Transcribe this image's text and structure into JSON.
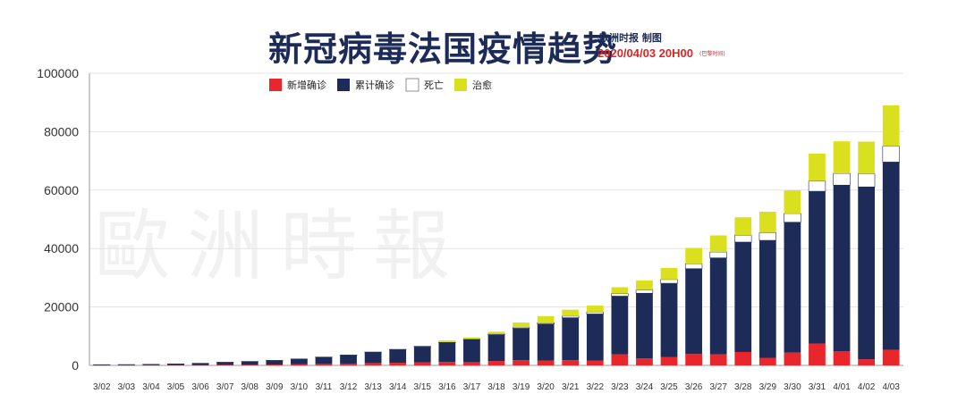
{
  "header": {
    "title": "新冠病毒法国疫情趋势",
    "publisher": "欧洲时报 制图",
    "timestamp": "2020/04/03 20H00",
    "timezone_note": "(巴黎时间)"
  },
  "watermark": "歐洲時報",
  "colors": {
    "new_cases": "#e8262c",
    "cumulative": "#1c2b57",
    "deaths": "#ffffff",
    "recovered": "#dbe01e",
    "title": "#1c2b57",
    "timestamp": "#e02424"
  },
  "chart_data": {
    "type": "bar",
    "stacked": true,
    "categories": [
      "3/02",
      "3/03",
      "3/04",
      "3/05",
      "3/06",
      "3/07",
      "3/08",
      "3/09",
      "3/10",
      "3/11",
      "3/12",
      "3/13",
      "3/14",
      "3/15",
      "3/16",
      "3/17",
      "3/18",
      "3/19",
      "3/20",
      "3/21",
      "3/22",
      "3/23",
      "3/24",
      "3/25",
      "3/26",
      "3/27",
      "3/28",
      "3/29",
      "3/30",
      "3/31",
      "4/01",
      "4/02",
      "4/03"
    ],
    "series": [
      {
        "name": "新增确诊",
        "color": "#e8262c",
        "values": [
          60,
          70,
          90,
          110,
          120,
          180,
          190,
          290,
          370,
          500,
          600,
          800,
          900,
          1000,
          1200,
          1100,
          1500,
          1800,
          1600,
          1800,
          1600,
          3800,
          2400,
          2900,
          3900,
          3800,
          4600,
          2600,
          4400,
          7500,
          4800,
          2100,
          5300
        ]
      },
      {
        "name": "累计确诊",
        "color": "#1c2b57",
        "values": [
          190,
          210,
          280,
          400,
          600,
          900,
          1150,
          1400,
          1800,
          2300,
          2900,
          3700,
          4500,
          5400,
          6600,
          7700,
          9000,
          10900,
          12600,
          14500,
          16000,
          19900,
          22300,
          25200,
          29200,
          33000,
          37600,
          40200,
          44600,
          52100,
          56900,
          59000,
          64300
        ]
      },
      {
        "name": "死亡",
        "color": "#ffffff",
        "values": [
          3,
          4,
          4,
          6,
          9,
          12,
          20,
          30,
          40,
          50,
          70,
          80,
          90,
          130,
          150,
          180,
          240,
          370,
          450,
          560,
          670,
          860,
          1100,
          1300,
          1700,
          2000,
          2300,
          2600,
          3000,
          3500,
          4000,
          4500,
          5400
        ]
      },
      {
        "name": "治愈",
        "color": "#dbe01e",
        "values": [
          10,
          10,
          10,
          12,
          12,
          12,
          12,
          12,
          12,
          12,
          12,
          12,
          12,
          12,
          600,
          600,
          800,
          1600,
          2200,
          2200,
          2200,
          2200,
          3300,
          4000,
          5400,
          5700,
          6200,
          7200,
          7900,
          9400,
          11000,
          11000,
          14000
        ]
      }
    ],
    "ylim": [
      0,
      100000
    ],
    "yticks": [
      "0",
      "20000",
      "40000",
      "60000",
      "80000",
      "100000"
    ],
    "grid": true,
    "legend_position": "top-left"
  }
}
